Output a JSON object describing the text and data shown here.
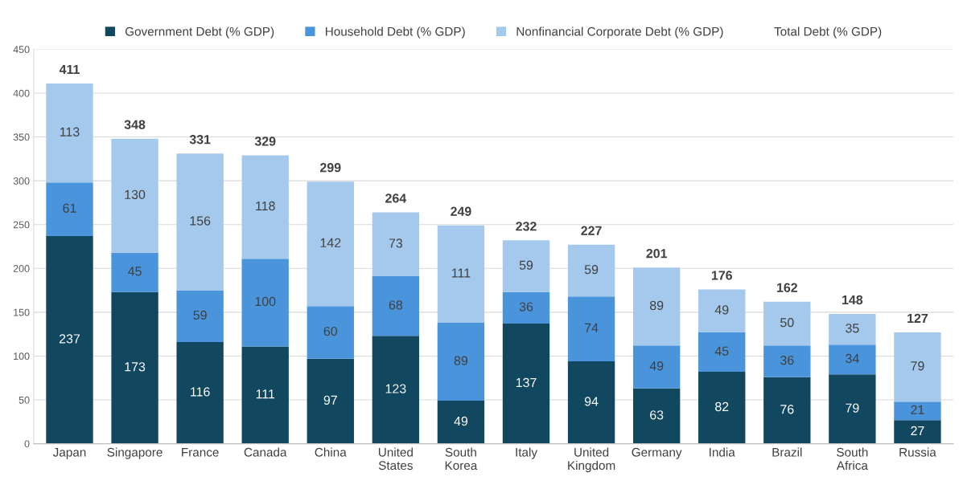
{
  "chart_data": {
    "type": "bar",
    "stacked": true,
    "categories": [
      "Japan",
      "Singapore",
      "France",
      "Canada",
      "China",
      "United\nStates",
      "South\nKorea",
      "Italy",
      "United\nKingdom",
      "Germany",
      "India",
      "Brazil",
      "South\nAfrica",
      "Russia"
    ],
    "series": [
      {
        "name": "Government Debt (% GDP)",
        "color": "#11475f",
        "values": [
          237,
          173,
          116,
          111,
          97,
          123,
          49,
          137,
          94,
          63,
          82,
          76,
          79,
          27
        ]
      },
      {
        "name": "Household Debt (% GDP)",
        "color": "#4a94db",
        "values": [
          61,
          45,
          59,
          100,
          60,
          68,
          89,
          36,
          74,
          49,
          45,
          36,
          34,
          21
        ]
      },
      {
        "name": "Nonfinancial Corporate Debt (% GDP)",
        "color": "#a5c9ec",
        "values": [
          113,
          130,
          156,
          118,
          142,
          73,
          111,
          59,
          59,
          89,
          49,
          50,
          35,
          79
        ]
      }
    ],
    "totals": [
      "411",
      "348",
      "331",
      "329",
      "299",
      "264",
      "249",
      "232",
      "227",
      "201",
      "176",
      "162",
      "148",
      "127"
    ],
    "annotations": [
      "Total Debt (% GDP)"
    ],
    "ylim": [
      0,
      450
    ],
    "yticks": [
      0,
      50,
      100,
      150,
      200,
      250,
      300,
      350,
      400,
      450
    ],
    "grid": "y",
    "legend": "top",
    "data_labels": true
  }
}
